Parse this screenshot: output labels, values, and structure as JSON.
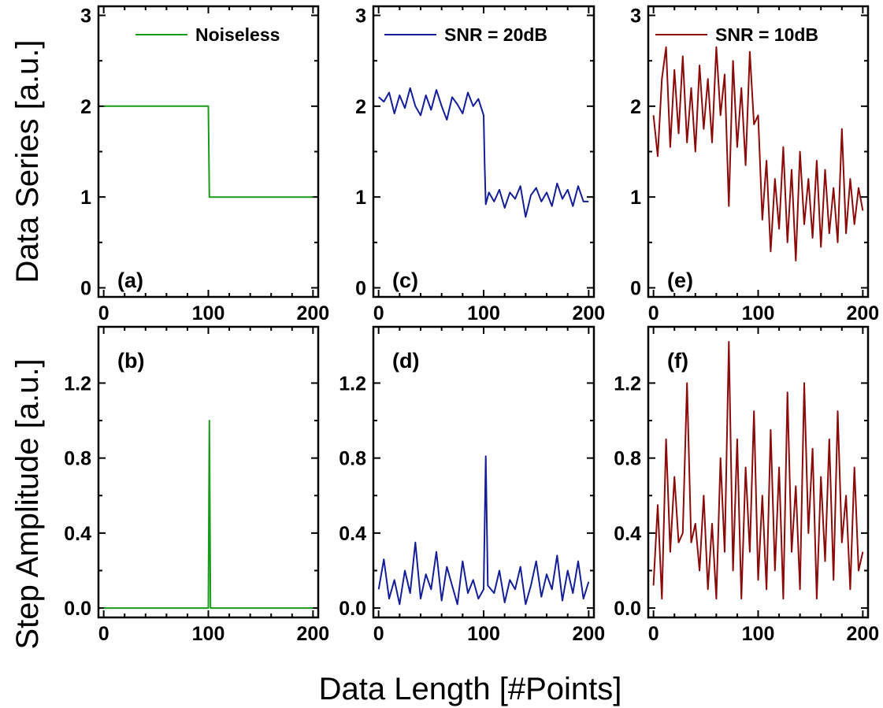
{
  "figure": {
    "ylabel_top": "Data Series [a.u.]",
    "ylabel_bottom": "Step Amplitude [a.u.]",
    "xlabel": "Data Length [#Points]"
  },
  "chart_data": [
    {
      "type": "line",
      "panel": "(a)",
      "legend": "Noiseless",
      "color": "#1a9a1a",
      "xlim": [
        -5,
        205
      ],
      "ylim": [
        -0.1,
        3.1
      ],
      "xticks": [
        0,
        100,
        200
      ],
      "yticks": [
        0,
        1,
        2,
        3
      ],
      "ytick_labels": [
        "0",
        "1",
        "2",
        "3"
      ],
      "x": [
        0,
        100,
        101,
        200
      ],
      "y": [
        2,
        2,
        1,
        1
      ]
    },
    {
      "type": "line",
      "panel": "(b)",
      "legend": "",
      "color": "#1a9a1a",
      "xlim": [
        -5,
        205
      ],
      "ylim": [
        -0.05,
        1.5
      ],
      "xticks": [
        0,
        100,
        200
      ],
      "yticks": [
        0,
        0.4,
        0.8,
        1.2
      ],
      "ytick_labels": [
        "0.0",
        "0.4",
        "0.8",
        "1.2"
      ],
      "x": [
        0,
        100,
        101,
        102,
        200
      ],
      "y": [
        0,
        0,
        1.0,
        0,
        0
      ]
    },
    {
      "type": "line",
      "panel": "(c)",
      "legend": "SNR = 20dB",
      "color": "#141e96",
      "xlim": [
        -5,
        205
      ],
      "ylim": [
        -0.1,
        3.1
      ],
      "xticks": [
        0,
        100,
        200
      ],
      "yticks": [
        0,
        1,
        2,
        3
      ],
      "ytick_labels": [
        "0",
        "1",
        "2",
        "3"
      ],
      "x": [
        0,
        5,
        10,
        15,
        20,
        25,
        30,
        35,
        40,
        45,
        50,
        55,
        60,
        65,
        70,
        75,
        80,
        85,
        90,
        95,
        100,
        101,
        102,
        105,
        110,
        115,
        120,
        125,
        130,
        135,
        140,
        145,
        150,
        155,
        160,
        165,
        170,
        175,
        180,
        185,
        190,
        195,
        200
      ],
      "y": [
        2.1,
        2.05,
        2.15,
        1.92,
        2.12,
        1.98,
        2.2,
        2.0,
        1.9,
        2.12,
        1.96,
        2.18,
        2.0,
        1.85,
        2.1,
        2.02,
        1.92,
        2.15,
        2.0,
        2.08,
        1.9,
        1.35,
        0.92,
        1.05,
        0.95,
        1.08,
        0.88,
        1.05,
        0.98,
        1.12,
        0.78,
        1.02,
        1.1,
        0.95,
        1.05,
        0.9,
        1.15,
        0.98,
        1.08,
        0.9,
        1.12,
        0.95,
        0.95
      ]
    },
    {
      "type": "line",
      "panel": "(d)",
      "legend": "",
      "color": "#141e96",
      "xlim": [
        -5,
        205
      ],
      "ylim": [
        -0.05,
        1.5
      ],
      "xticks": [
        0,
        100,
        200
      ],
      "yticks": [
        0,
        0.4,
        0.8,
        1.2
      ],
      "ytick_labels": [
        "0.0",
        "0.4",
        "0.8",
        "1.2"
      ],
      "x": [
        0,
        5,
        10,
        15,
        20,
        25,
        30,
        35,
        40,
        45,
        50,
        55,
        60,
        65,
        70,
        75,
        80,
        85,
        90,
        95,
        100,
        102,
        104,
        110,
        115,
        120,
        125,
        130,
        135,
        140,
        145,
        150,
        155,
        160,
        165,
        170,
        175,
        180,
        185,
        190,
        195,
        200
      ],
      "y": [
        0.1,
        0.26,
        0.05,
        0.15,
        0.02,
        0.2,
        0.08,
        0.35,
        0.05,
        0.18,
        0.1,
        0.3,
        0.04,
        0.22,
        0.12,
        0.02,
        0.25,
        0.08,
        0.15,
        0.05,
        0.1,
        0.81,
        0.12,
        0.08,
        0.2,
        0.03,
        0.15,
        0.1,
        0.22,
        0.02,
        0.12,
        0.25,
        0.06,
        0.18,
        0.1,
        0.28,
        0.04,
        0.2,
        0.08,
        0.25,
        0.05,
        0.14
      ]
    },
    {
      "type": "line",
      "panel": "(e)",
      "legend": "SNR = 10dB",
      "color": "#8b0a0a",
      "xlim": [
        -5,
        205
      ],
      "ylim": [
        -0.1,
        3.1
      ],
      "xticks": [
        0,
        100,
        200
      ],
      "yticks": [
        0,
        1,
        2,
        3
      ],
      "ytick_labels": [
        "0",
        "1",
        "2",
        "3"
      ],
      "x": [
        0,
        4,
        8,
        12,
        16,
        20,
        24,
        28,
        32,
        36,
        40,
        44,
        48,
        52,
        56,
        60,
        64,
        68,
        72,
        76,
        80,
        84,
        88,
        92,
        96,
        100,
        104,
        108,
        112,
        116,
        120,
        124,
        128,
        132,
        136,
        140,
        144,
        148,
        152,
        156,
        160,
        164,
        168,
        172,
        176,
        180,
        184,
        188,
        192,
        196,
        200
      ],
      "y": [
        1.9,
        1.45,
        2.3,
        2.65,
        1.55,
        2.4,
        1.7,
        2.55,
        1.6,
        2.2,
        1.5,
        2.45,
        1.75,
        2.3,
        1.6,
        2.65,
        1.9,
        2.35,
        0.9,
        2.5,
        1.55,
        2.2,
        1.35,
        2.6,
        1.8,
        1.9,
        0.75,
        1.4,
        0.4,
        1.2,
        0.65,
        1.55,
        0.5,
        1.3,
        0.3,
        1.5,
        0.7,
        1.2,
        0.55,
        1.4,
        0.45,
        1.3,
        0.6,
        1.1,
        0.5,
        1.75,
        0.6,
        1.2,
        0.7,
        1.1,
        0.85
      ]
    },
    {
      "type": "line",
      "panel": "(f)",
      "legend": "",
      "color": "#8b0a0a",
      "xlim": [
        -5,
        205
      ],
      "ylim": [
        -0.05,
        1.5
      ],
      "xticks": [
        0,
        100,
        200
      ],
      "yticks": [
        0,
        0.4,
        0.8,
        1.2
      ],
      "ytick_labels": [
        "0.0",
        "0.4",
        "0.8",
        "1.2"
      ],
      "x": [
        0,
        4,
        8,
        12,
        16,
        20,
        24,
        28,
        32,
        36,
        40,
        44,
        48,
        52,
        56,
        60,
        64,
        68,
        72,
        76,
        80,
        84,
        88,
        92,
        96,
        100,
        104,
        108,
        112,
        116,
        120,
        124,
        128,
        132,
        136,
        140,
        144,
        148,
        152,
        156,
        160,
        164,
        168,
        172,
        176,
        180,
        184,
        188,
        192,
        196,
        200
      ],
      "y": [
        0.12,
        0.55,
        0.05,
        0.9,
        0.3,
        0.7,
        0.35,
        0.4,
        1.2,
        0.35,
        0.45,
        0.2,
        0.6,
        0.1,
        0.45,
        0.05,
        0.8,
        0.3,
        1.42,
        0.2,
        0.9,
        0.05,
        0.75,
        0.3,
        1.05,
        0.15,
        0.6,
        0.1,
        0.95,
        0.2,
        0.75,
        0.05,
        1.15,
        0.3,
        0.65,
        0.1,
        1.2,
        0.4,
        0.85,
        0.05,
        0.7,
        0.25,
        0.9,
        0.15,
        1.05,
        0.35,
        0.6,
        0.1,
        0.75,
        0.2,
        0.3
      ]
    }
  ]
}
